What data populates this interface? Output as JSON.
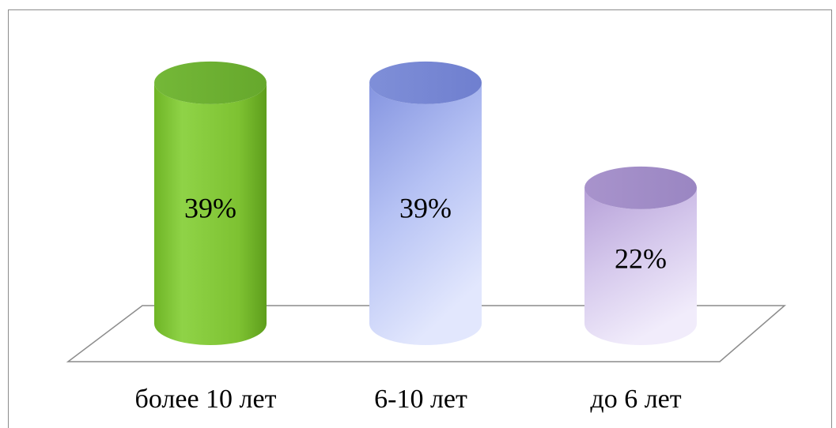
{
  "chart_data": {
    "type": "bar",
    "style": "3d-cylinder",
    "categories": [
      "более 10 лет",
      "6-10 лет",
      "до 6 лет"
    ],
    "values": [
      39,
      39,
      22
    ],
    "data_labels": [
      "39%",
      "39%",
      "22%"
    ],
    "unit": "%",
    "ylim": [
      0,
      40
    ],
    "grid": false,
    "legend": "none",
    "colors": [
      "#8cd03c",
      "#a8b6ef",
      "#d2c3ea"
    ]
  }
}
